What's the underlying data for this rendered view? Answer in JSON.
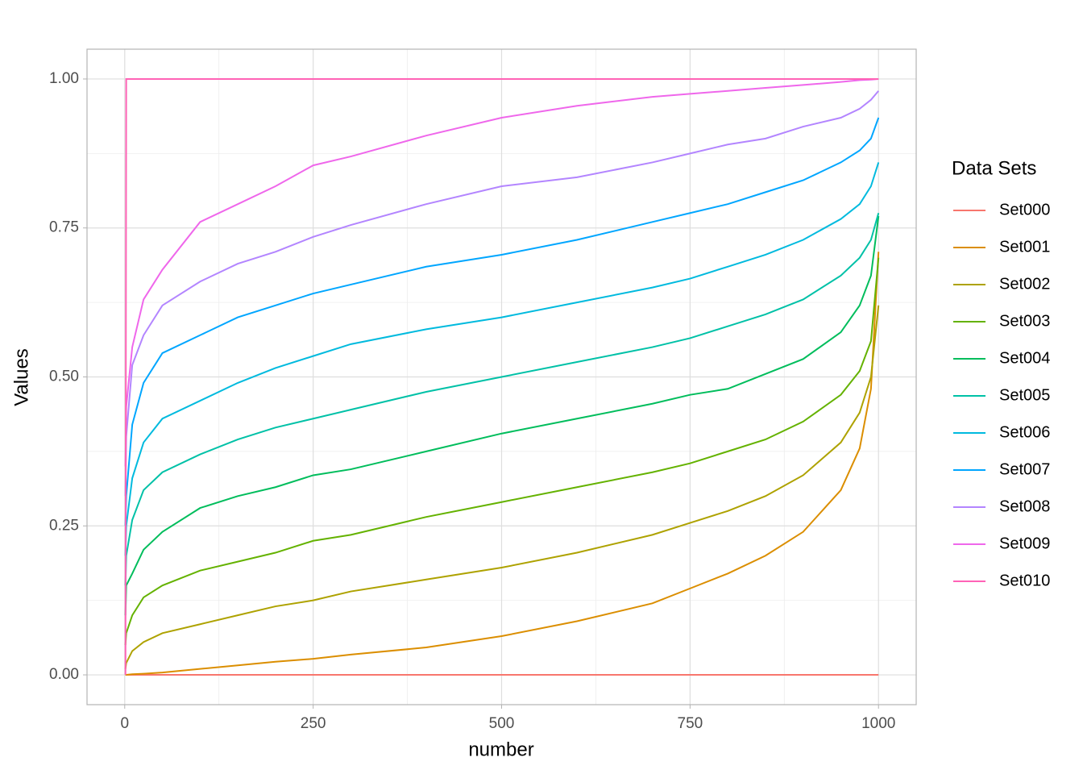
{
  "chart_data": {
    "type": "line",
    "x_label": "number",
    "y_label": "Values",
    "legend_title": "Data Sets",
    "x": [
      1,
      2,
      10,
      25,
      50,
      100,
      150,
      200,
      250,
      300,
      400,
      500,
      600,
      700,
      750,
      800,
      850,
      900,
      950,
      975,
      990,
      1000
    ],
    "xlim": [
      -50,
      1050
    ],
    "xticks": [
      0,
      250,
      500,
      750,
      1000
    ],
    "ylim": [
      -0.05,
      1.05
    ],
    "yticks": [
      {
        "value": 0,
        "label": "0.00"
      },
      {
        "value": 0.25,
        "label": "0.25"
      },
      {
        "value": 0.5,
        "label": "0.50"
      },
      {
        "value": 0.75,
        "label": "0.75"
      },
      {
        "value": 1,
        "label": "1.00"
      }
    ],
    "grid": true,
    "legend_position": "right",
    "series": [
      {
        "name": "Set000",
        "color": "#F8766D",
        "values": [
          0,
          0,
          0,
          0,
          0,
          0,
          0,
          0,
          0,
          0,
          0,
          0,
          0,
          0,
          0,
          0,
          0,
          0,
          0,
          0,
          0,
          0
        ]
      },
      {
        "name": "Set001",
        "color": "#DB8E00",
        "values": [
          0,
          0,
          0.001,
          0.002,
          0.004,
          0.01,
          0.016,
          0.022,
          0.027,
          0.034,
          0.046,
          0.065,
          0.09,
          0.12,
          0.145,
          0.17,
          0.2,
          0.24,
          0.31,
          0.38,
          0.48,
          0.71
        ]
      },
      {
        "name": "Set002",
        "color": "#AEA200",
        "values": [
          0.01,
          0.02,
          0.04,
          0.055,
          0.07,
          0.085,
          0.1,
          0.115,
          0.125,
          0.14,
          0.16,
          0.18,
          0.205,
          0.235,
          0.255,
          0.275,
          0.3,
          0.335,
          0.39,
          0.44,
          0.5,
          0.62
        ]
      },
      {
        "name": "Set003",
        "color": "#64B200",
        "values": [
          0.05,
          0.07,
          0.1,
          0.13,
          0.15,
          0.175,
          0.19,
          0.205,
          0.225,
          0.235,
          0.265,
          0.29,
          0.315,
          0.34,
          0.355,
          0.375,
          0.395,
          0.425,
          0.47,
          0.51,
          0.56,
          0.7
        ]
      },
      {
        "name": "Set004",
        "color": "#00BD5C",
        "values": [
          0.1,
          0.15,
          0.17,
          0.21,
          0.24,
          0.28,
          0.3,
          0.315,
          0.335,
          0.345,
          0.375,
          0.405,
          0.43,
          0.455,
          0.47,
          0.48,
          0.505,
          0.53,
          0.575,
          0.62,
          0.67,
          0.77
        ]
      },
      {
        "name": "Set005",
        "color": "#00C1A7",
        "values": [
          0.15,
          0.2,
          0.26,
          0.31,
          0.34,
          0.37,
          0.395,
          0.415,
          0.43,
          0.445,
          0.475,
          0.5,
          0.525,
          0.55,
          0.565,
          0.585,
          0.605,
          0.63,
          0.67,
          0.7,
          0.73,
          0.775
        ]
      },
      {
        "name": "Set006",
        "color": "#00BADE",
        "values": [
          0.2,
          0.25,
          0.33,
          0.39,
          0.43,
          0.46,
          0.49,
          0.515,
          0.535,
          0.555,
          0.58,
          0.6,
          0.625,
          0.65,
          0.665,
          0.685,
          0.705,
          0.73,
          0.765,
          0.79,
          0.82,
          0.86
        ]
      },
      {
        "name": "Set007",
        "color": "#00A6FF",
        "values": [
          0.25,
          0.3,
          0.42,
          0.49,
          0.54,
          0.57,
          0.6,
          0.62,
          0.64,
          0.655,
          0.685,
          0.705,
          0.73,
          0.76,
          0.775,
          0.79,
          0.81,
          0.83,
          0.86,
          0.88,
          0.9,
          0.935
        ]
      },
      {
        "name": "Set008",
        "color": "#B385FF",
        "values": [
          0.3,
          0.4,
          0.52,
          0.57,
          0.62,
          0.66,
          0.69,
          0.71,
          0.735,
          0.755,
          0.79,
          0.82,
          0.835,
          0.86,
          0.875,
          0.89,
          0.9,
          0.92,
          0.935,
          0.95,
          0.965,
          0.98
        ]
      },
      {
        "name": "Set009",
        "color": "#EF67EB",
        "values": [
          0.35,
          0.45,
          0.55,
          0.63,
          0.68,
          0.76,
          0.79,
          0.82,
          0.855,
          0.87,
          0.905,
          0.935,
          0.955,
          0.97,
          0.975,
          0.98,
          0.985,
          0.99,
          0.995,
          0.998,
          0.999,
          1
        ]
      },
      {
        "name": "Set010",
        "color": "#FF63B6",
        "values": [
          0,
          1,
          1,
          1,
          1,
          1,
          1,
          1,
          1,
          1,
          1,
          1,
          1,
          1,
          1,
          1,
          1,
          1,
          1,
          1,
          1,
          1
        ]
      }
    ]
  }
}
